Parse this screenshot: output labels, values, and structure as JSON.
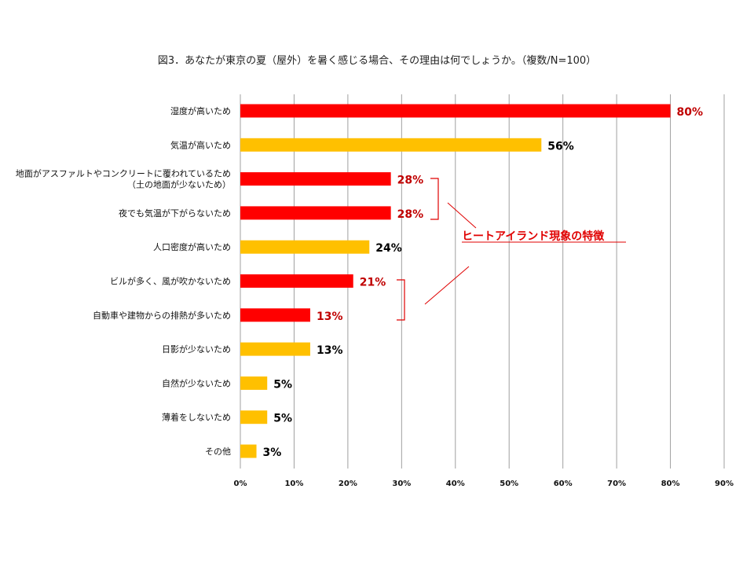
{
  "chart_data": {
    "type": "bar",
    "orientation": "horizontal",
    "title": "図3．あなたが東京の夏（屋外）を暑く感じる場合、その理由は何でしょうか。（複数/N=100）",
    "categories": [
      "湿度が高いため",
      "気温が高いため",
      "地面がアスファルトやコンクリートに覆われているため\n（土の地面が少ないため）",
      "夜でも気温が下がらないため",
      "人口密度が高いため",
      "ビルが多く、風が吹かないため",
      "自動車や建物からの排熱が多いため",
      "日影が少ないため",
      "自然が少ないため",
      "薄着をしないため",
      "その他"
    ],
    "values": [
      80,
      56,
      28,
      28,
      24,
      21,
      13,
      13,
      5,
      5,
      3
    ],
    "value_labels": [
      "80%",
      "56%",
      "28%",
      "28%",
      "24%",
      "21%",
      "13%",
      "13%",
      "5%",
      "5%",
      "3%"
    ],
    "highlighted": [
      true,
      false,
      true,
      true,
      false,
      true,
      true,
      false,
      false,
      false,
      false
    ],
    "xlim": [
      0,
      90
    ],
    "xticks": [
      "0%",
      "10%",
      "20%",
      "30%",
      "40%",
      "50%",
      "60%",
      "70%",
      "80%",
      "90%"
    ],
    "grid": "vertical",
    "colors": {
      "highlight_bar": "#ff0000",
      "normal_bar": "#ffc000",
      "highlight_text": "#c00000",
      "normal_text": "#000000",
      "annotation": "#e00000",
      "grid": "#a0a0a0"
    },
    "annotation": "ヒートアイランド現象の特徴"
  }
}
